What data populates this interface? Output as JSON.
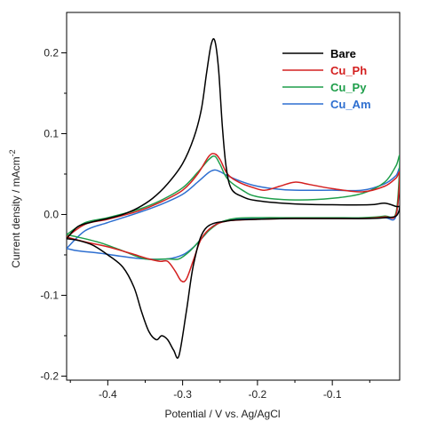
{
  "chart_data": {
    "type": "line",
    "title": "",
    "xlabel": "Potential / V vs. Ag/AgCl",
    "ylabel_main": "Current density / mAcm",
    "ylabel_sup": "-2",
    "xlim": [
      -0.455,
      -0.01
    ],
    "ylim": [
      -0.205,
      0.25
    ],
    "x_ticks": [
      -0.4,
      -0.3,
      -0.2,
      -0.1
    ],
    "x_tick_labels": [
      "-0.4",
      "-0.3",
      "-0.2",
      "-0.1"
    ],
    "y_ticks": [
      -0.2,
      -0.1,
      0.0,
      0.1,
      0.2
    ],
    "y_tick_labels": [
      "-0.2",
      "-0.1",
      "0.0",
      "0.1",
      "0.2"
    ],
    "legend_position": "top-right",
    "series": [
      {
        "name": "Bare",
        "color": "#000000",
        "points": [
          [
            -0.455,
            -0.03
          ],
          [
            -0.44,
            -0.015
          ],
          [
            -0.42,
            -0.009
          ],
          [
            -0.4,
            -0.005
          ],
          [
            -0.38,
            0.0
          ],
          [
            -0.36,
            0.008
          ],
          [
            -0.34,
            0.02
          ],
          [
            -0.32,
            0.038
          ],
          [
            -0.3,
            0.063
          ],
          [
            -0.285,
            0.095
          ],
          [
            -0.275,
            0.13
          ],
          [
            -0.268,
            0.175
          ],
          [
            -0.262,
            0.21
          ],
          [
            -0.257,
            0.215
          ],
          [
            -0.252,
            0.18
          ],
          [
            -0.247,
            0.11
          ],
          [
            -0.242,
            0.06
          ],
          [
            -0.235,
            0.032
          ],
          [
            -0.22,
            0.022
          ],
          [
            -0.2,
            0.017
          ],
          [
            -0.15,
            0.013
          ],
          [
            -0.1,
            0.012
          ],
          [
            -0.05,
            0.012
          ],
          [
            -0.03,
            0.014
          ],
          [
            -0.015,
            0.01
          ],
          [
            -0.01,
            0.009
          ],
          [
            -0.015,
            -0.002
          ],
          [
            -0.03,
            -0.004
          ],
          [
            -0.05,
            -0.005
          ],
          [
            -0.1,
            -0.005
          ],
          [
            -0.15,
            -0.005
          ],
          [
            -0.2,
            -0.006
          ],
          [
            -0.24,
            -0.008
          ],
          [
            -0.27,
            -0.018
          ],
          [
            -0.285,
            -0.06
          ],
          [
            -0.295,
            -0.12
          ],
          [
            -0.305,
            -0.175
          ],
          [
            -0.312,
            -0.168
          ],
          [
            -0.32,
            -0.155
          ],
          [
            -0.328,
            -0.15
          ],
          [
            -0.335,
            -0.155
          ],
          [
            -0.345,
            -0.145
          ],
          [
            -0.355,
            -0.12
          ],
          [
            -0.365,
            -0.09
          ],
          [
            -0.38,
            -0.065
          ],
          [
            -0.4,
            -0.05
          ],
          [
            -0.42,
            -0.038
          ],
          [
            -0.44,
            -0.032
          ],
          [
            -0.455,
            -0.03
          ]
        ]
      },
      {
        "name": "Cu_Ph",
        "color": "#d42020",
        "points": [
          [
            -0.455,
            -0.028
          ],
          [
            -0.43,
            -0.012
          ],
          [
            -0.4,
            -0.006
          ],
          [
            -0.36,
            0.004
          ],
          [
            -0.33,
            0.015
          ],
          [
            -0.3,
            0.03
          ],
          [
            -0.28,
            0.05
          ],
          [
            -0.265,
            0.072
          ],
          [
            -0.257,
            0.075
          ],
          [
            -0.25,
            0.068
          ],
          [
            -0.24,
            0.05
          ],
          [
            -0.225,
            0.04
          ],
          [
            -0.205,
            0.033
          ],
          [
            -0.19,
            0.03
          ],
          [
            -0.17,
            0.035
          ],
          [
            -0.15,
            0.04
          ],
          [
            -0.13,
            0.037
          ],
          [
            -0.1,
            0.032
          ],
          [
            -0.06,
            0.028
          ],
          [
            -0.03,
            0.035
          ],
          [
            -0.015,
            0.045
          ],
          [
            -0.01,
            0.05
          ],
          [
            -0.015,
            0.0
          ],
          [
            -0.03,
            -0.003
          ],
          [
            -0.06,
            -0.005
          ],
          [
            -0.1,
            -0.005
          ],
          [
            -0.15,
            -0.005
          ],
          [
            -0.2,
            -0.006
          ],
          [
            -0.24,
            -0.008
          ],
          [
            -0.26,
            -0.015
          ],
          [
            -0.275,
            -0.03
          ],
          [
            -0.285,
            -0.055
          ],
          [
            -0.295,
            -0.08
          ],
          [
            -0.302,
            -0.082
          ],
          [
            -0.31,
            -0.07
          ],
          [
            -0.32,
            -0.058
          ],
          [
            -0.33,
            -0.058
          ],
          [
            -0.345,
            -0.055
          ],
          [
            -0.37,
            -0.048
          ],
          [
            -0.4,
            -0.04
          ],
          [
            -0.43,
            -0.034
          ],
          [
            -0.455,
            -0.028
          ]
        ]
      },
      {
        "name": "Cu_Py",
        "color": "#1e9e4a",
        "points": [
          [
            -0.455,
            -0.025
          ],
          [
            -0.43,
            -0.01
          ],
          [
            -0.4,
            -0.004
          ],
          [
            -0.36,
            0.006
          ],
          [
            -0.33,
            0.017
          ],
          [
            -0.3,
            0.033
          ],
          [
            -0.28,
            0.052
          ],
          [
            -0.265,
            0.068
          ],
          [
            -0.257,
            0.072
          ],
          [
            -0.25,
            0.062
          ],
          [
            -0.24,
            0.044
          ],
          [
            -0.22,
            0.03
          ],
          [
            -0.2,
            0.022
          ],
          [
            -0.15,
            0.018
          ],
          [
            -0.1,
            0.02
          ],
          [
            -0.06,
            0.026
          ],
          [
            -0.03,
            0.04
          ],
          [
            -0.015,
            0.06
          ],
          [
            -0.01,
            0.07
          ],
          [
            -0.015,
            0.002
          ],
          [
            -0.03,
            -0.002
          ],
          [
            -0.06,
            -0.004
          ],
          [
            -0.1,
            -0.004
          ],
          [
            -0.15,
            -0.004
          ],
          [
            -0.2,
            -0.004
          ],
          [
            -0.23,
            -0.005
          ],
          [
            -0.25,
            -0.01
          ],
          [
            -0.265,
            -0.02
          ],
          [
            -0.275,
            -0.03
          ],
          [
            -0.29,
            -0.045
          ],
          [
            -0.305,
            -0.055
          ],
          [
            -0.32,
            -0.055
          ],
          [
            -0.35,
            -0.055
          ],
          [
            -0.38,
            -0.045
          ],
          [
            -0.41,
            -0.035
          ],
          [
            -0.44,
            -0.028
          ],
          [
            -0.455,
            -0.025
          ]
        ]
      },
      {
        "name": "Cu_Am",
        "color": "#2e6fd0",
        "points": [
          [
            -0.455,
            -0.042
          ],
          [
            -0.43,
            -0.02
          ],
          [
            -0.4,
            -0.01
          ],
          [
            -0.36,
            0.002
          ],
          [
            -0.33,
            0.012
          ],
          [
            -0.3,
            0.025
          ],
          [
            -0.28,
            0.04
          ],
          [
            -0.265,
            0.052
          ],
          [
            -0.257,
            0.055
          ],
          [
            -0.25,
            0.053
          ],
          [
            -0.24,
            0.048
          ],
          [
            -0.225,
            0.042
          ],
          [
            -0.205,
            0.036
          ],
          [
            -0.18,
            0.032
          ],
          [
            -0.15,
            0.03
          ],
          [
            -0.1,
            0.03
          ],
          [
            -0.06,
            0.03
          ],
          [
            -0.03,
            0.038
          ],
          [
            -0.015,
            0.048
          ],
          [
            -0.01,
            0.055
          ],
          [
            -0.015,
            -0.002
          ],
          [
            -0.03,
            -0.004
          ],
          [
            -0.06,
            -0.005
          ],
          [
            -0.1,
            -0.005
          ],
          [
            -0.15,
            -0.005
          ],
          [
            -0.2,
            -0.005
          ],
          [
            -0.23,
            -0.006
          ],
          [
            -0.25,
            -0.01
          ],
          [
            -0.26,
            -0.015
          ],
          [
            -0.27,
            -0.025
          ],
          [
            -0.285,
            -0.04
          ],
          [
            -0.3,
            -0.05
          ],
          [
            -0.32,
            -0.055
          ],
          [
            -0.35,
            -0.055
          ],
          [
            -0.38,
            -0.052
          ],
          [
            -0.41,
            -0.048
          ],
          [
            -0.44,
            -0.045
          ],
          [
            -0.455,
            -0.042
          ]
        ]
      }
    ]
  }
}
